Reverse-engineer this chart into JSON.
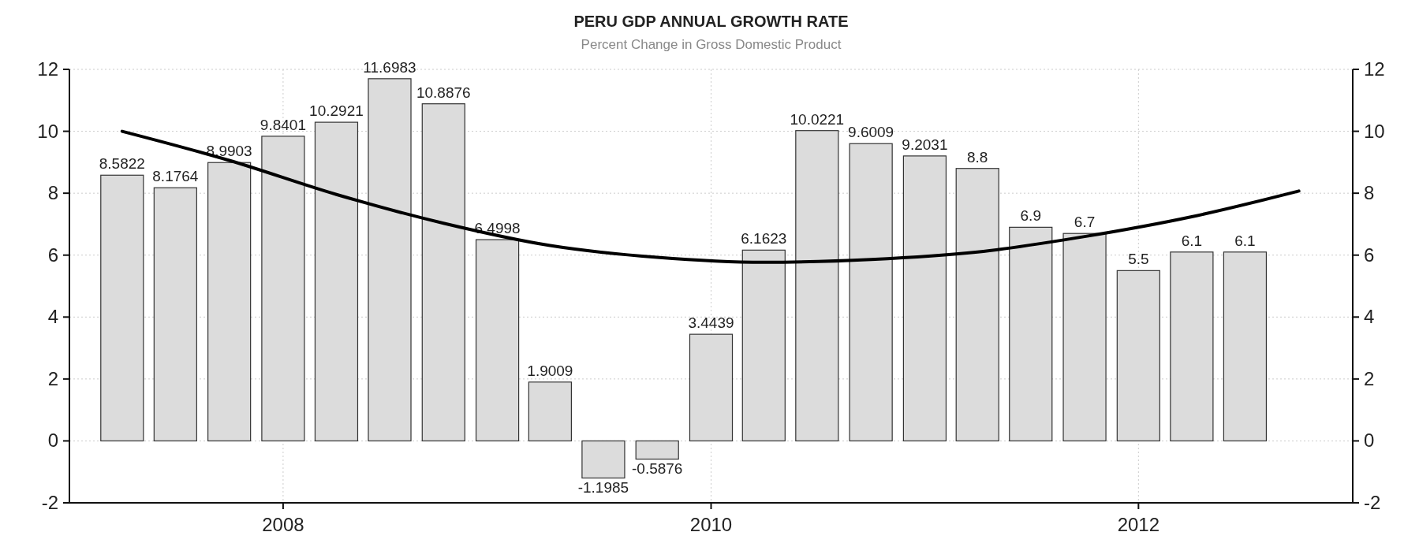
{
  "chart_data": {
    "type": "bar",
    "title": "PERU GDP ANNUAL GROWTH RATE",
    "subtitle": "Percent Change in Gross Domestic Product",
    "xlim": [
      "2007-01-01",
      "2013-01-01"
    ],
    "xticks": [
      {
        "value": "2008-01-01",
        "label": "2008"
      },
      {
        "value": "2010-01-01",
        "label": "2010"
      },
      {
        "value": "2012-01-01",
        "label": "2012"
      }
    ],
    "ylim": [
      -2,
      12
    ],
    "yticks": [
      -2,
      0,
      2,
      4,
      6,
      8,
      10,
      12
    ],
    "y2lim": [
      -2,
      12
    ],
    "y2ticks": [
      -2,
      0,
      2,
      4,
      6,
      8,
      10,
      12
    ],
    "grid": true,
    "series": [
      {
        "color": "#dcdcdc",
        "x": [
          "2007-04-01",
          "2007-07-01",
          "2007-10-01",
          "2008-01-01",
          "2008-04-01",
          "2008-07-01",
          "2008-10-01",
          "2009-01-01",
          "2009-04-01",
          "2009-07-01",
          "2009-10-01",
          "2010-01-01",
          "2010-04-01",
          "2010-07-01",
          "2010-10-01",
          "2011-01-01",
          "2011-04-01",
          "2011-07-01",
          "2011-10-01",
          "2012-01-01",
          "2012-04-01",
          "2012-07-01"
        ],
        "values": [
          8.5822,
          8.1764,
          8.9903,
          9.8401,
          10.2921,
          11.6983,
          10.8876,
          6.4998,
          1.9009,
          -1.1985,
          -0.5876,
          3.4439,
          6.1623,
          10.0221,
          9.6009,
          9.2031,
          8.8,
          6.9,
          6.7,
          5.5,
          6.1,
          6.1
        ],
        "value_labels": [
          "8.5822",
          "8.1764",
          "8.9903",
          "9.8401",
          "10.2921",
          "11.6983",
          "10.8876",
          "6.4998",
          "1.9009",
          "-1.1985",
          "-0.5876",
          "3.4439",
          "6.1623",
          "10.0221",
          "9.6009",
          "9.2031",
          "8.8",
          "6.9",
          "6.7",
          "5.5",
          "6.1",
          "6.1"
        ]
      },
      {
        "type": "line",
        "color": "#000000",
        "x": [
          "2007-04-01",
          "2007-10-01",
          "2008-04-01",
          "2008-10-01",
          "2009-04-01",
          "2009-10-01",
          "2010-04-01",
          "2010-10-01",
          "2011-04-01",
          "2011-10-01",
          "2012-04-01",
          "2012-10-01"
        ],
        "values": [
          10.0,
          9.06,
          7.96,
          7.03,
          6.31,
          5.93,
          5.77,
          5.86,
          6.1,
          6.6,
          7.24,
          8.07
        ]
      }
    ]
  }
}
